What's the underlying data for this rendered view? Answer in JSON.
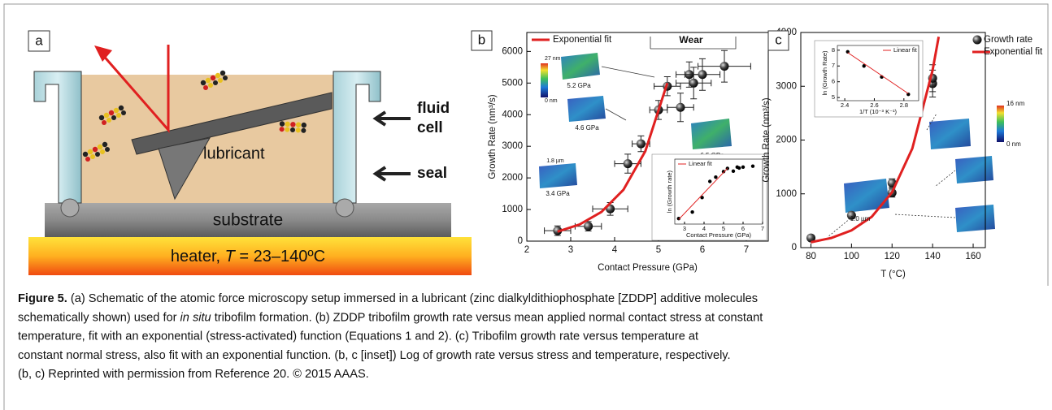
{
  "schematic": {
    "label": "a",
    "fluid_cell": [
      "fluid",
      "cell"
    ],
    "seal": "seal",
    "lubricant": "lubricant",
    "substrate": "substrate",
    "heater": [
      "heater, ",
      "T",
      " = 23–140ºC"
    ]
  },
  "chart_data": [
    {
      "type": "scatter",
      "panel_label": "b",
      "xlabel": "Contact Pressure (GPa)",
      "ylabel": "Growth Rate (nm³/s)",
      "xlim": [
        2,
        7.5
      ],
      "ylim": [
        0,
        6600
      ],
      "xticks": [
        2,
        3,
        4,
        5,
        6,
        7
      ],
      "yticks": [
        0,
        1000,
        2000,
        3000,
        4000,
        5000,
        6000
      ],
      "legend": "upper left",
      "series": [
        {
          "mode": "markers",
          "color": "#000000",
          "x": [
            2.7,
            3.4,
            3.9,
            4.3,
            4.6,
            5.0,
            5.2,
            5.5,
            5.8,
            5.7,
            6.0,
            6.5
          ],
          "values": [
            330,
            470,
            1020,
            2450,
            3080,
            4150,
            4900,
            4230,
            5000,
            5270,
            5270,
            5530
          ],
          "yerr": [
            150,
            150,
            200,
            300,
            250,
            300,
            300,
            450,
            500,
            400,
            500,
            500
          ],
          "xerr": [
            0.3,
            0.3,
            0.4,
            0.3,
            0.2,
            0.2,
            0.3,
            0.3,
            0.4,
            0.3,
            0.4,
            0.6
          ]
        },
        {
          "name": "Exponential fit",
          "mode": "line",
          "color": "#e02020",
          "x": [
            2.7,
            3.2,
            3.7,
            4.2,
            4.7,
            5.2
          ],
          "values": [
            300,
            526,
            924,
            1622,
            2848,
            5000
          ]
        }
      ],
      "annotations": [
        "Wear",
        "5.2 GPa",
        "4.6 GPa",
        "6.5 GPa",
        "3.4 GPa",
        "27 nm",
        "0 nm",
        "1.8 µm"
      ]
    },
    {
      "type": "scatter",
      "xlabel": "Contact Pressure (GPa)",
      "ylabel": "ln (Growth rate)",
      "xlim": [
        2.5,
        7
      ],
      "ylim": [
        5.5,
        9
      ],
      "xticks": [
        3,
        4,
        5,
        6,
        7
      ],
      "legend": "upper left",
      "series": [
        {
          "mode": "markers",
          "color": "#000000",
          "x": [
            2.7,
            3.4,
            3.9,
            4.3,
            4.6,
            5.0,
            5.2,
            5.5,
            5.8,
            5.7,
            6.0,
            6.5
          ],
          "values": [
            5.8,
            6.15,
            6.93,
            7.8,
            8.03,
            8.33,
            8.5,
            8.35,
            8.52,
            8.57,
            8.57,
            8.62
          ]
        },
        {
          "name": "Linear fit",
          "mode": "line",
          "color": "#e02020",
          "x": [
            2.7,
            5.2
          ],
          "values": [
            5.75,
            8.5
          ]
        }
      ]
    },
    {
      "type": "scatter",
      "panel_label": "c",
      "xlabel": "T (°C)",
      "ylabel": "Growth Rate (nm³/s)",
      "xlim": [
        75,
        166
      ],
      "ylim": [
        0,
        4000
      ],
      "xticks": [
        80,
        100,
        120,
        140,
        160
      ],
      "yticks": [
        0,
        1000,
        2000,
        3000,
        4000
      ],
      "legend": "upper right",
      "series": [
        {
          "name": "Growth rate",
          "mode": "markers",
          "color": "#000000",
          "x": [
            80,
            100,
            120,
            120,
            140,
            140
          ],
          "values": [
            180,
            600,
            1020,
            1200,
            3050,
            3150
          ],
          "yerr": [
            50,
            60,
            80,
            80,
            250,
            250
          ]
        },
        {
          "name": "Exponential fit",
          "mode": "line",
          "color": "#e02020",
          "x": [
            80,
            90,
            100,
            110,
            120,
            130,
            140,
            143
          ],
          "values": [
            100,
            179,
            321,
            574,
            1029,
            1843,
            3300,
            3920
          ]
        }
      ],
      "annotations": [
        "16 nm",
        "0 nm",
        "1.0 µm"
      ]
    },
    {
      "type": "scatter",
      "xlabel": "1/T (10⁻³ K⁻¹)",
      "ylabel": "ln (Growth Rate)",
      "xlim": [
        2.35,
        2.9
      ],
      "ylim": [
        4.8,
        8.3
      ],
      "xticks": [
        2.4,
        2.6,
        2.8
      ],
      "yticks": [
        5,
        6,
        7,
        8
      ],
      "legend": "upper right",
      "series": [
        {
          "mode": "markers",
          "color": "#000000",
          "x": [
            2.42,
            2.53,
            2.65,
            2.83
          ],
          "values": [
            7.9,
            7.0,
            6.3,
            5.2
          ]
        },
        {
          "name": "Linear fit",
          "mode": "line",
          "color": "#e02020",
          "x": [
            2.42,
            2.83
          ],
          "values": [
            7.85,
            5.25
          ]
        }
      ]
    }
  ],
  "caption": {
    "lines": [
      [
        "Figure 5.",
        " (a) Schematic of the atomic force microscopy setup immersed in a lubricant (zinc dialkyldithiophosphate [ZDDP] additive molecules"
      ],
      [
        "schematically shown) used for ",
        "in situ",
        " tribofilm formation. (b) ZDDP tribofilm growth rate versus mean applied normal contact stress at constant"
      ],
      [
        "temperature, fit with an exponential (stress-activated) function (Equations 1 and 2). (c) Tribofilm growth rate versus temperature at"
      ],
      [
        "constant normal stress, also fit with an exponential function. (b, c [inset]) Log of growth rate versus stress and temperature, respectively."
      ],
      [
        "(b, c) Reprinted with permission from Reference 20. © 2015 AAAS."
      ]
    ]
  }
}
